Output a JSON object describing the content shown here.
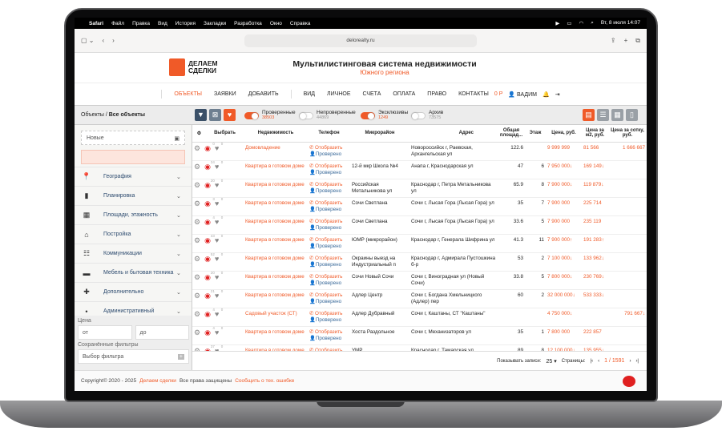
{
  "menubar": {
    "app": "Safari",
    "items": [
      "Файл",
      "Правка",
      "Вид",
      "История",
      "Закладки",
      "Разработка",
      "Окно",
      "Справка"
    ],
    "clock": "Вт, 8 июля 14:07"
  },
  "browser": {
    "url": "delorealty.ru"
  },
  "header": {
    "logo_line1": "ДЕЛАЕМ",
    "logo_line2": "СДЕЛКИ",
    "title": "Мультилистинговая система недвижимости",
    "subtitle": "Южного региона"
  },
  "nav": {
    "items": [
      "ОБЪЕКТЫ",
      "ЗАЯВКИ",
      "ДОБАВИТЬ",
      "ВИД",
      "ЛИЧНОЕ",
      "СЧЕТА",
      "ОПЛАТА",
      "ПРАВО",
      "КОНТАКТЫ"
    ],
    "balance": "0 Р",
    "user": "ВАДИМ"
  },
  "toolbar": {
    "crumb_root": "Объекты",
    "crumb_current": "Все объекты",
    "toggles": [
      {
        "label": "Проверенные",
        "count": "38503",
        "on": true
      },
      {
        "label": "Непроверенные",
        "count": "44869",
        "on": false
      },
      {
        "label": "Эксклюзивы",
        "count": "1249",
        "on": true
      },
      {
        "label": "Архив",
        "count": "73575",
        "on": false
      }
    ]
  },
  "sidebar": {
    "date_placeholder": "Новые",
    "sections": [
      "География",
      "Планировка",
      "Площади, этажность",
      "Постройка",
      "Коммуникации",
      "Мебель и бытовая техника",
      "Дополнительно",
      "Административный"
    ],
    "price_label": "Цена",
    "price_from": "от",
    "price_to": "до",
    "saved_label": "Сохранённые фильтры",
    "saved_placeholder": "Выбор фильтра"
  },
  "table": {
    "headers": [
      "Выбрать",
      "Недвижимость",
      "Телефон",
      "Микрорайон",
      "Адрес",
      "Общая площад...",
      "Этаж",
      "Цена, руб.",
      "Цена за м2, руб.",
      "Цена за сотку, руб."
    ],
    "phone_label": "Отобразить",
    "verified_label": "Проверено",
    "rows": [
      {
        "views": "0",
        "likes": "0",
        "type": "Домовладение",
        "micro": "",
        "address": "Новороссийск г, Раевская, Архангельская ул",
        "area": "122.6",
        "floor": "",
        "price": "9 999 999",
        "m2": "81 566",
        "sotka": "1 666 667"
      },
      {
        "views": "34",
        "likes": "0",
        "type": "Квартира в готовом доме",
        "micro": "12-й мкр Школа №4",
        "address": "Анапа г, Краснодарская ул",
        "area": "47",
        "floor": "6",
        "price": "7 950 000↓",
        "m2": "169 149↓",
        "sotka": ""
      },
      {
        "views": "20",
        "likes": "0",
        "type": "Квартира в готовом доме",
        "micro": "Российская Метальникова ул",
        "address": "Краснодар г, Петра Метальникова ул",
        "area": "65.9",
        "floor": "8",
        "price": "7 900 000↓",
        "m2": "119 879↓",
        "sotka": ""
      },
      {
        "views": "3",
        "likes": "0",
        "type": "Квартира в готовом доме",
        "micro": "Сочи Светлана",
        "address": "Сочи г, Лысая Гора (Лысая Гора) ул",
        "area": "35",
        "floor": "7",
        "price": "7 900 000",
        "m2": "225 714",
        "sotka": ""
      },
      {
        "views": "4",
        "likes": "0",
        "type": "Квартира в готовом доме",
        "micro": "Сочи Светлана",
        "address": "Сочи г, Лысая Гора (Лысая Гора) ул",
        "area": "33.6",
        "floor": "5",
        "price": "7 900 000",
        "m2": "235 119",
        "sotka": ""
      },
      {
        "views": "43",
        "likes": "0",
        "type": "Квартира в готовом доме",
        "micro": "ЮМР (микрорайон)",
        "address": "Краснодар г, Генерала Шифрина ул",
        "area": "41.3",
        "floor": "11",
        "price": "7 900 000↑",
        "m2": "191 283↑",
        "sotka": ""
      },
      {
        "views": "52",
        "likes": "0",
        "type": "Квартира в готовом доме",
        "micro": "Окраины выезд на Индустриальный п",
        "address": "Краснодар г, Адмирала Пустошкина б-р",
        "area": "53",
        "floor": "2",
        "price": "7 100 000↓",
        "m2": "133 962↓",
        "sotka": ""
      },
      {
        "views": "20",
        "likes": "0",
        "type": "Квартира в готовом доме",
        "micro": "Сочи Новый Сочи",
        "address": "Сочи г, Виноградная ул (Новый Сочи)",
        "area": "33.8",
        "floor": "5",
        "price": "7 800 000↓",
        "m2": "230 769↓",
        "sotka": ""
      },
      {
        "views": "21",
        "likes": "0",
        "type": "Квартира в готовом доме",
        "micro": "Адлер Центр",
        "address": "Сочи г, Богдана Хмельницкого (Адлер) пер",
        "area": "60",
        "floor": "2",
        "price": "32 000 000↓",
        "m2": "533 333↓",
        "sotka": ""
      },
      {
        "views": "4",
        "likes": "0",
        "type": "Садовый участок (СТ)",
        "micro": "Адлер Дубравный",
        "address": "Сочи г, Каштаны, СТ \"Каштаны\"",
        "area": "",
        "floor": "",
        "price": "4 750 000↓",
        "m2": "",
        "sotka": "791 667↓"
      },
      {
        "views": "4",
        "likes": "0",
        "type": "Квартира в готовом доме",
        "micro": "Хоста Раздольное",
        "address": "Сочи г, Механизаторов ул",
        "area": "35",
        "floor": "1",
        "price": "7 800 000",
        "m2": "222 857",
        "sotka": ""
      },
      {
        "views": "37",
        "likes": "0",
        "type": "Квартира в готовом доме",
        "micro": "УМР",
        "address": "Краснодар г, Тамарская ул",
        "area": "89",
        "floor": "8",
        "price": "12 100 000↓",
        "m2": "135 955↓",
        "sotka": ""
      }
    ]
  },
  "pager": {
    "show_label": "Показывать записи:",
    "page_size": "25",
    "pages_label": "Страницы:",
    "current": "1 / 1591"
  },
  "footer": {
    "copyright": "Copyright© 2020 - 2025",
    "brand": "Делаем сделки",
    "rights": "Все права защищены",
    "report": "Сообщить о тех. ошибке"
  },
  "colors": {
    "accent": "#f05a28",
    "link_blue": "#3a6a9a"
  }
}
